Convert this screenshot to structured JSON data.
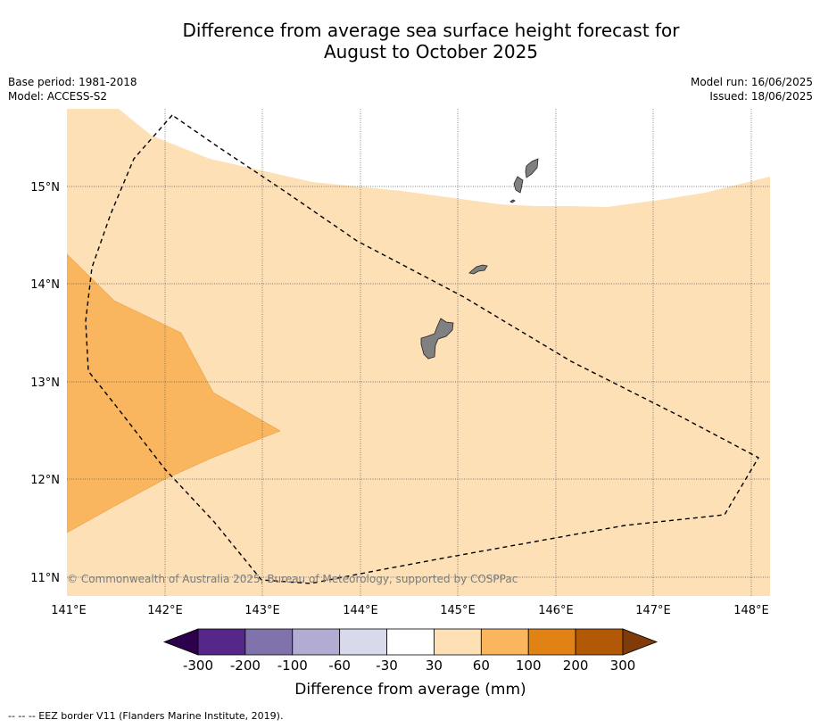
{
  "title_line1": "Difference from average sea surface height forecast for",
  "title_line2": "August to October 2025",
  "meta_left": [
    "Base period: 1981-2018",
    "Model: ACCESS-S2"
  ],
  "meta_right": [
    "Model run: 16/06/2025",
    "Issued: 18/06/2025"
  ],
  "copyright": "© Commonwealth of Australia 2025, Bureau of Meteorology, supported by COSPPac",
  "lat_labels": [
    "15°N",
    "14°N",
    "13°N",
    "12°N",
    "11°N"
  ],
  "lon_labels": [
    "141°E",
    "142°E",
    "143°E",
    "144°E",
    "145°E",
    "146°E",
    "147°E",
    "148°E"
  ],
  "colorbar": {
    "ticks": [
      "-300",
      "-200",
      "-100",
      "-60",
      "-30",
      "30",
      "60",
      "100",
      "200",
      "300"
    ],
    "colors": [
      "#2d004b",
      "#542788",
      "#8073ac",
      "#b2abd2",
      "#d8daeb",
      "#ffffff",
      "#fde0b6",
      "#f9b65f",
      "#e08214",
      "#b35806",
      "#7f3b08"
    ],
    "label": "Difference from average (mm)"
  },
  "legend_footer": "--  --  -- EEZ border V11 (Flanders Marine Institute, 2019)."
}
